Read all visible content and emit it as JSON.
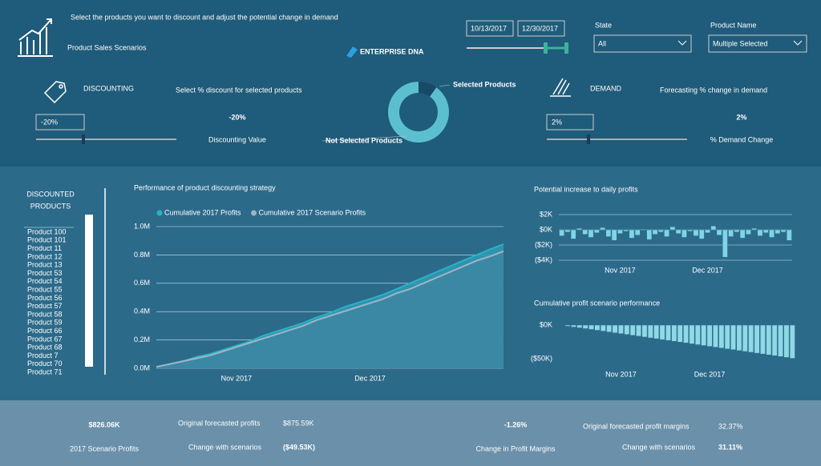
{
  "header": {
    "subtitle": "Select the products you want to discount and adjust the potential change in demand",
    "title": "Product Sales Scenarios",
    "brand": "ENTERPRISE DNA"
  },
  "filters": {
    "start_date": "10/13/2017",
    "end_date": "12/30/2017",
    "state_label": "State",
    "state_value": "All",
    "product_label": "Product Name",
    "product_value": "Multiple Selected"
  },
  "discounting": {
    "title": "DISCOUNTING",
    "description": "Select % discount for selected products",
    "input": "-20%",
    "value": "-20%",
    "value_label": "Discounting Value"
  },
  "demand": {
    "title": "DEMAND",
    "description": "Forecasting % change in demand",
    "input": "2%",
    "value": "2%",
    "value_label": "% Demand Change"
  },
  "product_list": {
    "title_lines": [
      "DISCOUNTED",
      "PRODUCTS"
    ],
    "items": [
      "Product 100",
      "Product 101",
      "Product 11",
      "Product 12",
      "Product 13",
      "Product 53",
      "Product 54",
      "Product 55",
      "Product 56",
      "Product 57",
      "Product 58",
      "Product 59",
      "Product 66",
      "Product 67",
      "Product 68",
      "Product 7",
      "Product 70",
      "Product 71"
    ]
  },
  "kpis": {
    "scenario_profits": "$826.06K",
    "scenario_profits_label": "2017 Scenario Profits",
    "original_profits_label": "Original forecasted profits",
    "original_profits": "$875.59K",
    "change_label": "Change with scenarios",
    "change": "($49.53K)",
    "margin_change": "-1.26%",
    "margin_change_label": "Change in Profit Margins",
    "original_margin_label": "Original forecasted profit margins",
    "original_margin": "32.37%",
    "margin_change2_label": "Change with scenarios",
    "scenario_margin": "31.11%"
  },
  "chart_data": [
    {
      "type": "pie",
      "categories": [
        "Selected Products",
        "Not Selected Products"
      ],
      "values": [
        10,
        90
      ],
      "colors": [
        "#174a66",
        "#5bbfd0"
      ],
      "donut": true
    },
    {
      "type": "line",
      "title": "Performance of product discounting strategy",
      "categories": [
        null,
        null,
        null,
        null,
        null,
        null,
        "Nov 2017",
        null,
        null,
        null,
        null,
        null,
        null,
        null,
        null,
        null,
        "Dec 2017",
        null,
        null,
        null,
        null,
        null,
        null,
        null,
        null,
        null,
        null
      ],
      "series": [
        {
          "name": "Cumulative 2017 Profits",
          "color": "#2ab3c6",
          "values": [
            0.01,
            0.03,
            0.05,
            0.08,
            0.1,
            0.13,
            0.16,
            0.19,
            0.23,
            0.26,
            0.29,
            0.32,
            0.36,
            0.39,
            0.43,
            0.46,
            0.49,
            0.52,
            0.56,
            0.6,
            0.64,
            0.68,
            0.72,
            0.76,
            0.8,
            0.84,
            0.876
          ]
        },
        {
          "name": "Cumulative 2017 Scenario Profits",
          "color": "#9fb5c4",
          "values": [
            0.01,
            0.03,
            0.05,
            0.07,
            0.09,
            0.12,
            0.15,
            0.18,
            0.21,
            0.24,
            0.27,
            0.3,
            0.34,
            0.37,
            0.4,
            0.43,
            0.46,
            0.49,
            0.53,
            0.56,
            0.6,
            0.64,
            0.68,
            0.72,
            0.76,
            0.79,
            0.826
          ]
        }
      ],
      "ylim": [
        0,
        1
      ],
      "yticks": [
        {
          "value": 0,
          "label": "0.0M"
        },
        {
          "value": 0.2,
          "label": "0.2M"
        },
        {
          "value": 0.4,
          "label": "0.4M"
        },
        {
          "value": 0.6,
          "label": "0.6M"
        },
        {
          "value": 0.8,
          "label": "0.8M"
        },
        {
          "value": 1,
          "label": "1.0M"
        }
      ],
      "grid": true,
      "area": true
    },
    {
      "type": "bar",
      "title": "Potential increase to daily profits",
      "categories": [
        null,
        null,
        null,
        null,
        null,
        null,
        null,
        null,
        null,
        null,
        "Nov 2017",
        null,
        null,
        null,
        null,
        null,
        null,
        null,
        null,
        null,
        null,
        null,
        null,
        null,
        null,
        "Dec 2017",
        null,
        null,
        null,
        null,
        null,
        null,
        null,
        null,
        null,
        null,
        null,
        null,
        null,
        null
      ],
      "values": [
        -0.8,
        -0.3,
        -1.2,
        0.2,
        -0.6,
        -1.0,
        -0.4,
        0.3,
        -0.9,
        -1.4,
        -0.5,
        -0.2,
        -1.1,
        -0.7,
        0.1,
        -1.3,
        -0.6,
        -0.3,
        -0.9,
        0.4,
        -0.5,
        -1.0,
        -0.2,
        -0.8,
        -1.2,
        -0.4,
        0.5,
        -0.7,
        -3.6,
        -0.9,
        -0.3,
        -1.1,
        -0.6,
        0.2,
        -0.8,
        -0.4,
        -1.0,
        -0.5,
        -0.3,
        -1.4
      ],
      "color": "#7fd4e6",
      "ylim": [
        -4,
        2
      ],
      "yticks": [
        {
          "value": 2,
          "label": "$2K"
        },
        {
          "value": 0,
          "label": "$0K"
        },
        {
          "value": -2,
          "label": "($2K)"
        },
        {
          "value": -4,
          "label": "($4K)"
        }
      ],
      "grid": true
    },
    {
      "type": "bar",
      "title": "Cumulative profit scenario performance",
      "categories": [
        null,
        null,
        null,
        null,
        null,
        null,
        null,
        null,
        null,
        null,
        "Nov 2017",
        null,
        null,
        null,
        null,
        null,
        null,
        null,
        null,
        null,
        null,
        null,
        null,
        null,
        null,
        "Dec 2017",
        null,
        null,
        null,
        null,
        null,
        null,
        null,
        null,
        null,
        null,
        null,
        null,
        null,
        null
      ],
      "values": [
        -0.5,
        -1.8,
        -3.0,
        -4.1,
        -5.3,
        -6.5,
        -7.8,
        -9.0,
        -10.3,
        -11.6,
        -12.8,
        -14.0,
        -15.3,
        -16.5,
        -17.8,
        -19.1,
        -20.3,
        -21.6,
        -22.9,
        -24.1,
        -25.4,
        -26.6,
        -27.9,
        -29.2,
        -30.4,
        -31.7,
        -32.9,
        -34.2,
        -35.5,
        -36.7,
        -38.0,
        -39.3,
        -40.5,
        -41.8,
        -43.0,
        -44.3,
        -45.6,
        -46.8,
        -48.1,
        -49.5
      ],
      "color": "#8fd8e6",
      "ylim": [
        -50,
        0
      ],
      "yticks": [
        {
          "value": 0,
          "label": "$0K"
        },
        {
          "value": -50,
          "label": "($50K)"
        }
      ],
      "grid": false
    }
  ]
}
